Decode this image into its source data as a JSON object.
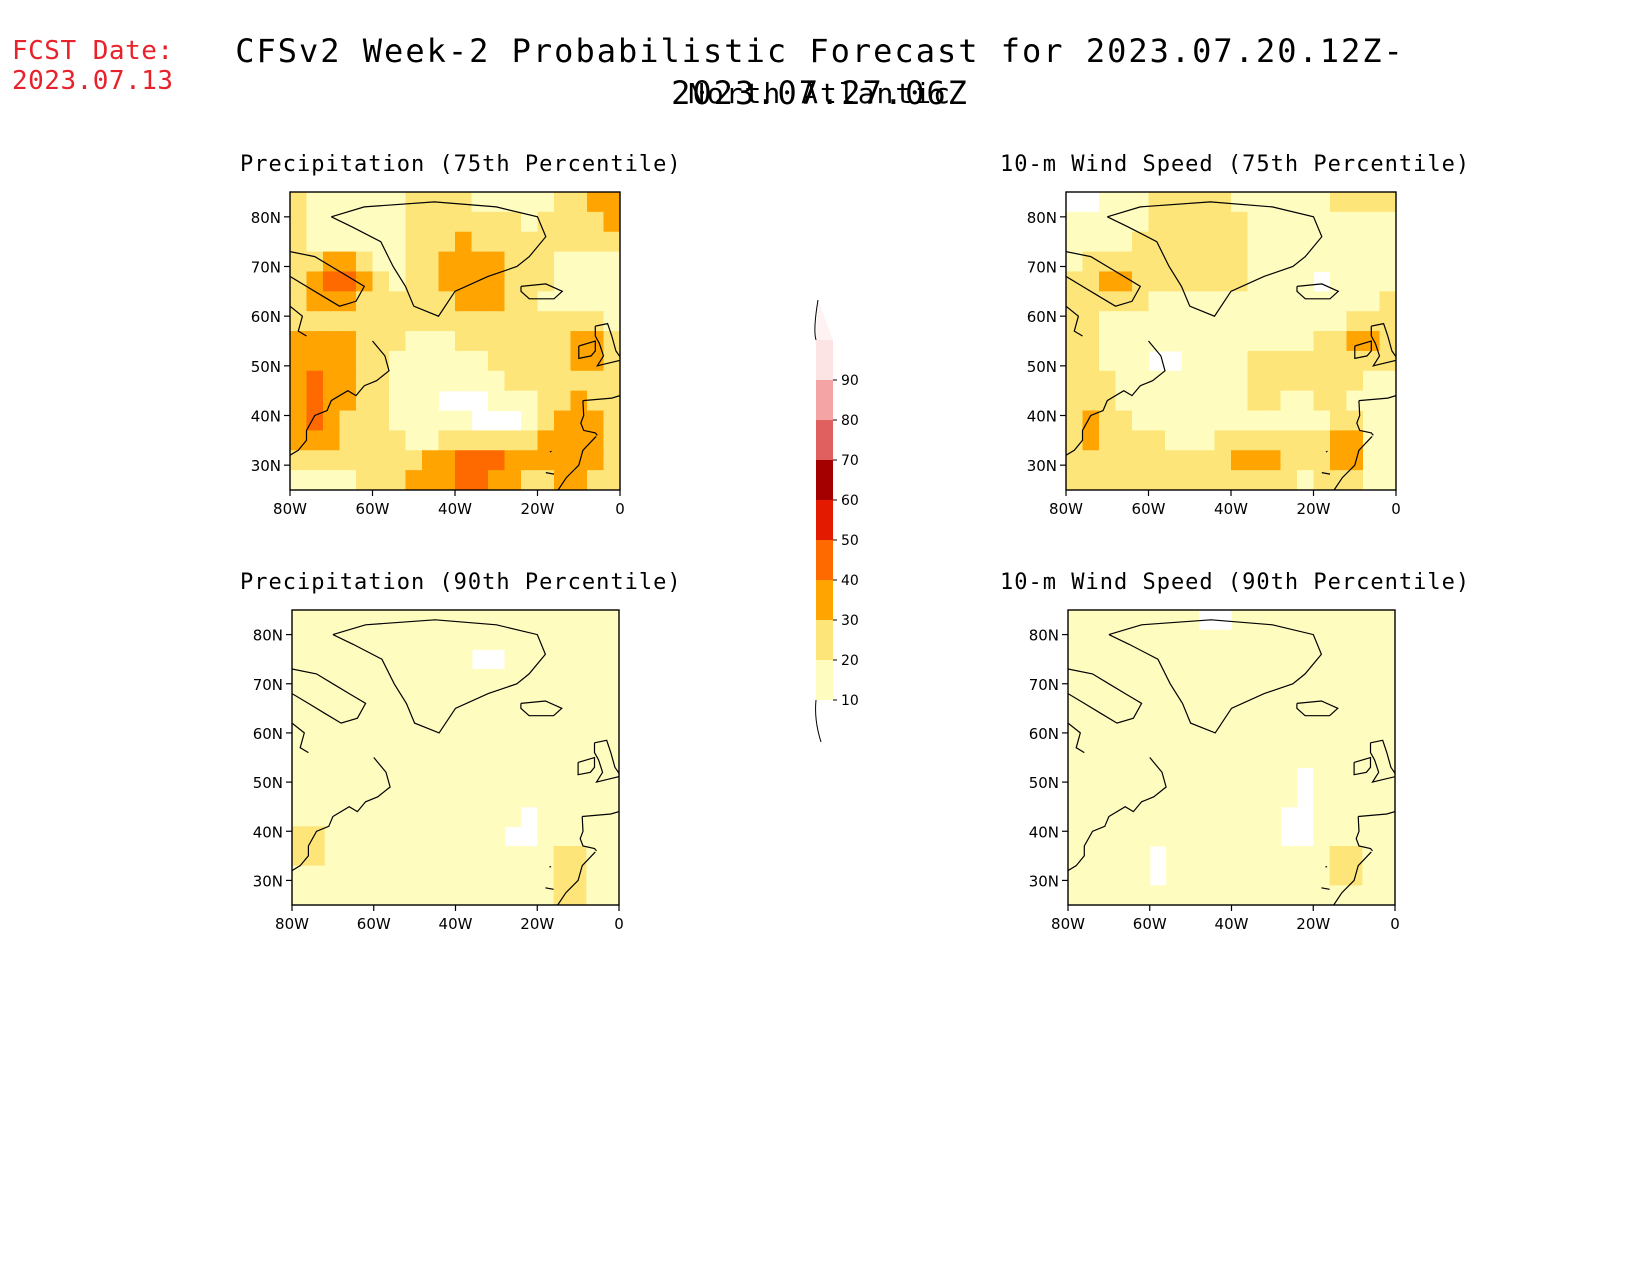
{
  "header": {
    "fcst_label": "FCST Date:",
    "fcst_date": "2023.07.13",
    "title": "CFSv2 Week-2 Probabilistic Forecast for 2023.07.20.12Z-2023.07.27.06Z",
    "subtitle": "North Atlantic"
  },
  "panels": [
    {
      "title": "Precipitation (75th Percentile)",
      "intensity": 2.0
    },
    {
      "title": "10-m Wind Speed (75th Percentile)",
      "intensity": 1.3
    },
    {
      "title": "Precipitation (90th Percentile)",
      "intensity": 0.55
    },
    {
      "title": "10-m Wind Speed (90th Percentile)",
      "intensity": 0.35
    }
  ],
  "axes": {
    "lat_labels": [
      "80N",
      "70N",
      "60N",
      "50N",
      "40N",
      "30N"
    ],
    "lat_values": [
      80,
      70,
      60,
      50,
      40,
      30
    ],
    "lon_labels": [
      "80W",
      "60W",
      "40W",
      "20W",
      "0"
    ],
    "lon_values": [
      -80,
      -60,
      -40,
      -20,
      0
    ],
    "lat_range": [
      25,
      85
    ],
    "lon_range": [
      -80,
      0
    ]
  },
  "colorbar": {
    "labels": [
      "10",
      "20",
      "30",
      "40",
      "50",
      "60",
      "70",
      "80",
      "90"
    ],
    "colors": [
      "#fffcc0",
      "#fde57a",
      "#ffa400",
      "#ff6a00",
      "#e31a00",
      "#a50000",
      "#e06060",
      "#f4a4a4",
      "#fde4e4"
    ]
  }
}
